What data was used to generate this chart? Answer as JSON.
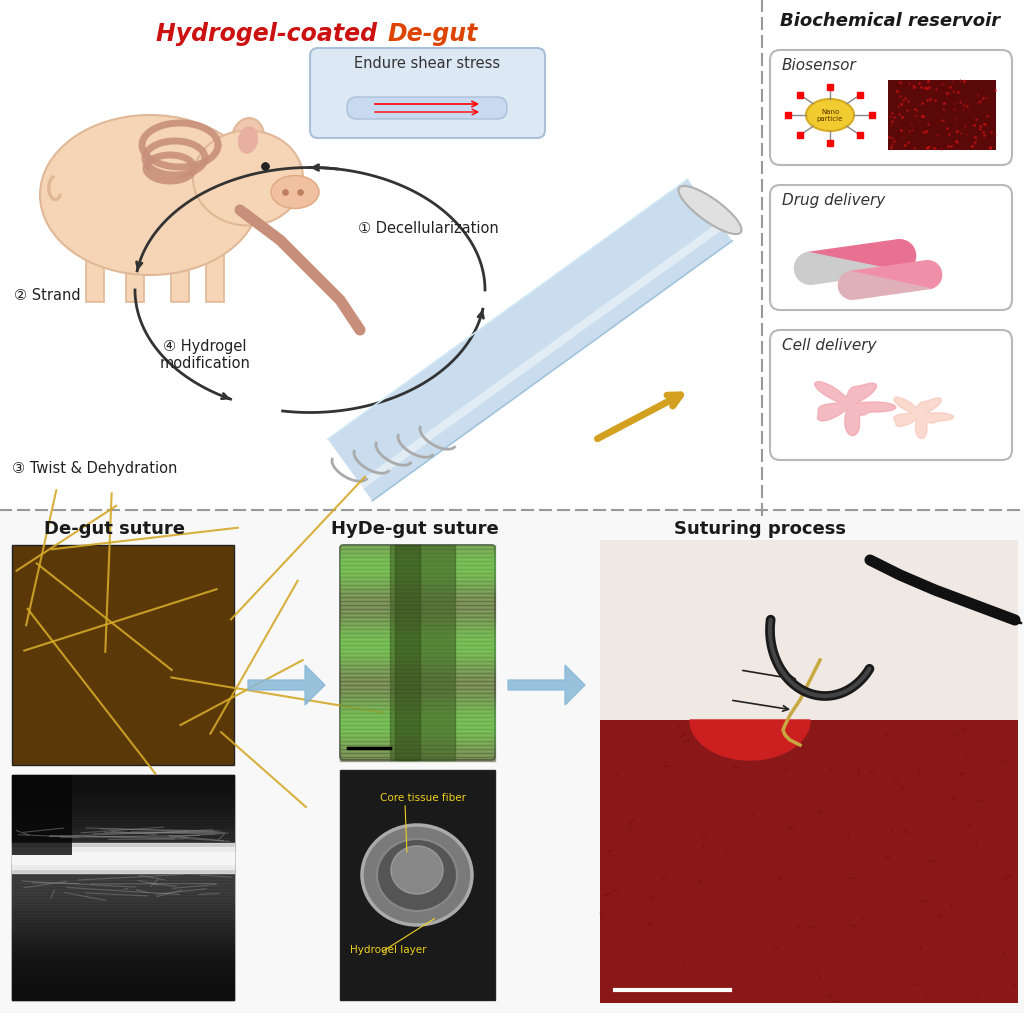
{
  "biochem_title": "Biochemical reservoir",
  "biosensor_label": "Biosensor",
  "drug_label": "Drug delivery",
  "cell_label": "Cell delivery",
  "endure_label": "Endure shear stress",
  "step1": "① Decellularization",
  "step2": "② Strand",
  "step3": "③ Twist & Dehydration",
  "step4": "④ Hydrogel\nmodification",
  "bottom_label1": "De-gut suture",
  "bottom_label2": "HyDe-gut suture",
  "bottom_label3": "Suturing process",
  "core_tissue_label": "Core tissue fiber",
  "hydrogel_layer_label": "Hydrogel layer",
  "bg_color": "#ffffff",
  "dashed_line_color": "#999999",
  "arrow_gold": "#d4a020",
  "arrow_blue": "#88b8d8",
  "pig_body": "#f5d5b5",
  "pig_gut": "#c8907a",
  "suture_blue": "#c0d8ec"
}
